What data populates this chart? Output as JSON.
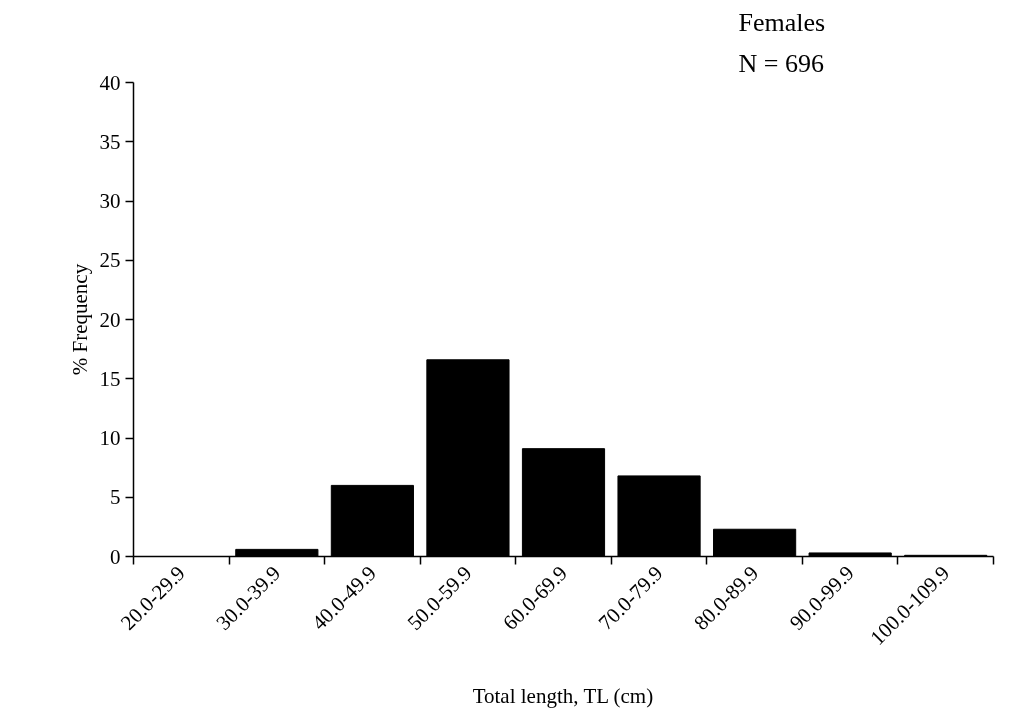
{
  "chart_data": {
    "type": "bar",
    "categories": [
      "20.0-29.9",
      "30.0-39.9",
      "40.0-49.9",
      "50.0-59.9",
      "60.0-69.9",
      "70.0-79.9",
      "80.0-89.9",
      "90.0-99.9",
      "100.0-109.9"
    ],
    "values": [
      0,
      0.6,
      6.0,
      16.6,
      9.1,
      6.8,
      2.3,
      0.3,
      0.1
    ],
    "color": "#000000",
    "xlabel": "Total length, TL (cm)",
    "ylabel": "% Frequency",
    "annotations": [
      "Females",
      "N = 696"
    ],
    "ylim": [
      0,
      40
    ],
    "yticks": [
      0,
      5,
      10,
      15,
      20,
      25,
      30,
      35,
      40
    ],
    "grid": false
  }
}
